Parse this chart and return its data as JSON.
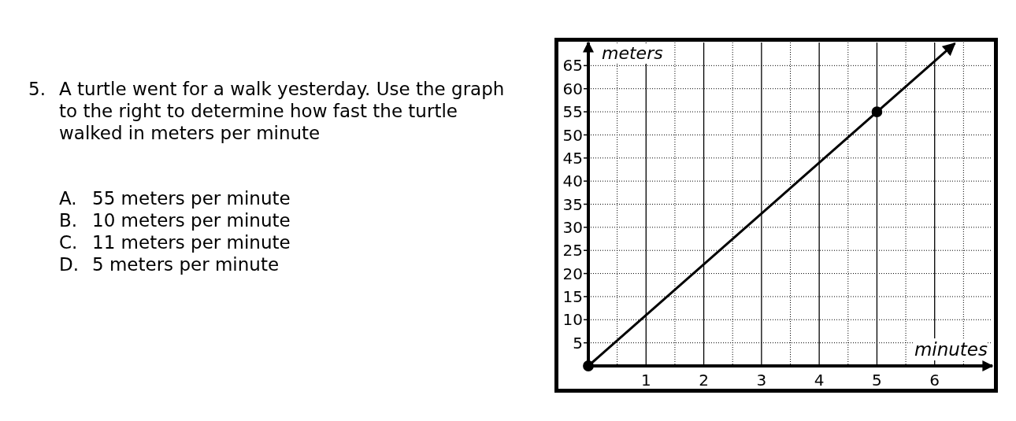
{
  "chart_data": {
    "type": "line",
    "title": "5. A turtle went for a walk yesterday. Use the graph to the right to determine how fast the turtle walked in meters per minute",
    "annotations": [
      "A. 55 meters per minute",
      "B. 10 meters per minute",
      "C. 11 meters per minute",
      "D. 5 meters per minute"
    ],
    "xlabel": "minutes",
    "ylabel": "meters",
    "series": [
      {
        "color": "#000000",
        "x": [
          0,
          6.35
        ],
        "values": [
          0,
          69.8
        ],
        "marker": "none"
      },
      {
        "type": "scatter",
        "color": "#000000",
        "x": [
          0,
          5
        ],
        "values": [
          0,
          55
        ],
        "marker": "circle"
      }
    ],
    "xlim": [
      0,
      7
    ],
    "ylim": [
      0,
      70
    ],
    "xticks": [
      {
        "value": 0.5,
        "label": null
      },
      1,
      {
        "value": 1.5,
        "label": null
      },
      2,
      {
        "value": 2.5,
        "label": null
      },
      3,
      {
        "value": 3.5,
        "label": null
      },
      4,
      {
        "value": 4.5,
        "label": null
      },
      5,
      {
        "value": 5.5,
        "label": null
      },
      6,
      {
        "value": 6.5,
        "label": null
      }
    ],
    "yticks": [
      5,
      10,
      15,
      20,
      25,
      30,
      35,
      40,
      45,
      50,
      55,
      60,
      65
    ],
    "grid": true
  }
}
